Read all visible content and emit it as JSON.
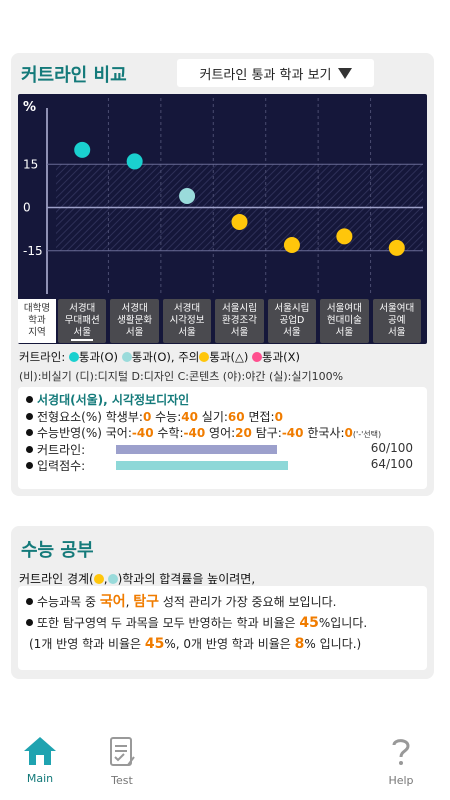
{
  "cutline": {
    "title": "커트라인 비교",
    "dropdown_label": "커트라인 통과 학과 보기"
  },
  "chart_data": {
    "type": "scatter",
    "ylabel": "%",
    "yticks": [
      15,
      0,
      -15
    ],
    "ylim": [
      -30,
      38
    ],
    "row_header": "대학명\n학과\n지역",
    "categories": [
      "서경대\n무대패션\n서울",
      "서경대\n생활문화\n서울",
      "서경대\n시각정보\n서울",
      "서울시립\n환경조각\n서울",
      "서울시립\n공업D\n서울",
      "서울여대\n현대미술\n서울",
      "서울여대\n공예\n서울"
    ],
    "values": [
      20,
      16,
      4,
      -5,
      -13,
      -10,
      -14
    ],
    "point_colors": [
      "#1ad0cf",
      "#1ad0cf",
      "#9adbdb",
      "#ffc60b",
      "#ffc60b",
      "#ffc60b",
      "#ffc60b"
    ],
    "selected_index": 0
  },
  "legend": {
    "prefix": "커트라인:",
    "items": [
      {
        "color": "#1ad0cf",
        "label": "통과(O)"
      },
      {
        "color": "#9adbdb",
        "label": "통과(O), 주의"
      },
      {
        "color": "#ffc60b",
        "label": "통과(△)"
      },
      {
        "color": "#ff4f8e",
        "label": "통과(X)"
      }
    ],
    "abbrev": "(비):비실기 (디):디지털 D:디자인 C:콘텐츠 (야):야간 (실):실기100%"
  },
  "detail": {
    "school": "서경대(서울), 시각정보디자인",
    "factors_label": "전형요소(%)",
    "factors": [
      {
        "name": "학생부:",
        "value": "0"
      },
      {
        "name": "수능:",
        "value": "40"
      },
      {
        "name": "실기:",
        "value": "60"
      },
      {
        "name": "면접:",
        "value": "0"
      }
    ],
    "suneung_label": "수능반영(%)",
    "suneung": [
      {
        "name": "국어:",
        "value": "-40"
      },
      {
        "name": "수학:",
        "value": "-40"
      },
      {
        "name": "영어:",
        "value": "20"
      },
      {
        "name": "탐구:",
        "value": "-40"
      },
      {
        "name": "한국사:",
        "value": "0"
      }
    ],
    "suneung_note": "('-'선택)",
    "cutline_label": "커트라인:",
    "cutline_value": 60,
    "cutline_score": "60/100",
    "input_label": "입력점수:",
    "input_value": 64,
    "input_score": "64/100",
    "bar_colors": {
      "cutline": "#9ca0cc",
      "input": "#8ed8d8"
    }
  },
  "study": {
    "title": "수능 공부",
    "intro_a": "커트라인 경계(",
    "intro_b": ",",
    "intro_c": ")학과의 합격률을 높이려면,",
    "line1_a": "수능과목 중 ",
    "line1_b": "국어",
    "line1_c": ", ",
    "line1_d": "탐구",
    "line1_e": " 성적 관리가 가장 중요해 보입니다.",
    "line2_a": "또한 탐구영역 두 과목을 모두 반영하는 학과 비율은 ",
    "line2_b": "45",
    "line2_c": "%입니다.",
    "line3_a": "(1개 반영 학과 비율은 ",
    "line3_b": "45",
    "line3_c": "%, 0개 반영 학과 비율은 ",
    "line3_d": "8",
    "line3_e": "% 입니다.)"
  },
  "nav": {
    "main": "Main",
    "test": "Test",
    "help": "Help"
  },
  "colors": {
    "accent": "#147a7a",
    "orange": "#f07c00",
    "chart_bg": "#15173a"
  }
}
